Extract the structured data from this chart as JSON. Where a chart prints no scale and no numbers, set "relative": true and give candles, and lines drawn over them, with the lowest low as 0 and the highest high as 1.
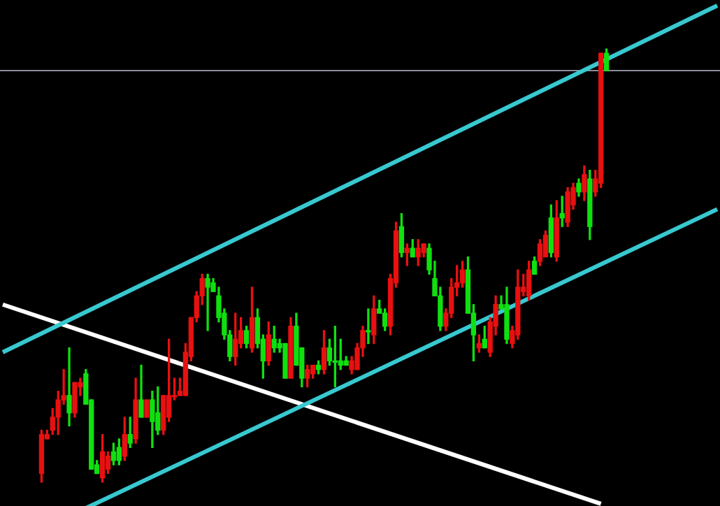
{
  "chart_data": {
    "type": "candlestick",
    "relative": true,
    "legend": false,
    "marker": "none",
    "categories": [
      null,
      null,
      null,
      null,
      null,
      null,
      null,
      null,
      null,
      null,
      null,
      null,
      null,
      null,
      null,
      null,
      null,
      null,
      null,
      null,
      null,
      null,
      null,
      null,
      null,
      null,
      null,
      null,
      null,
      null,
      null,
      null,
      null,
      null,
      null,
      null,
      null,
      null,
      null,
      null,
      null,
      null,
      null,
      null,
      null,
      null,
      null,
      null,
      null,
      null,
      null,
      null,
      null,
      null,
      null,
      null,
      null,
      null,
      null,
      null,
      null,
      null,
      null,
      null,
      null,
      null,
      null,
      null,
      null,
      null,
      null,
      null,
      null,
      null,
      null,
      null,
      null,
      null,
      null,
      null,
      null,
      null,
      null,
      null,
      null,
      null,
      null,
      null,
      null,
      null,
      null,
      null,
      null,
      null,
      null,
      null,
      null,
      null,
      null,
      null,
      null,
      null,
      null,
      null,
      null,
      null,
      null,
      null,
      null,
      null,
      null,
      null,
      null,
      null,
      null,
      null,
      null,
      null,
      null,
      null,
      null,
      null,
      null,
      null,
      null,
      null,
      null,
      null,
      null,
      null
    ],
    "ohlc": [
      null,
      null,
      null,
      null,
      null,
      null,
      null,
      [
        0.02,
        0.12,
        0,
        0.11
      ],
      [
        0.1,
        0.12,
        0.1,
        0.11
      ],
      [
        0.12,
        0.17,
        0.11,
        0.15
      ],
      [
        0.15,
        0.21,
        0.11,
        0.19
      ],
      [
        0.19,
        0.26,
        0.18,
        0.2
      ],
      [
        0.2,
        0.31,
        0.13,
        0.16
      ],
      [
        0.16,
        0.23,
        0.15,
        0.23
      ],
      [
        0.22,
        0.24,
        0.2,
        0.23
      ],
      [
        0.25,
        0.26,
        0.18,
        0.18
      ],
      [
        0.19,
        0.19,
        0.03,
        0.03
      ],
      [
        0.04,
        0.05,
        0.02,
        0.02
      ],
      [
        0.01,
        0.11,
        0,
        0.07
      ],
      [
        0.03,
        0.07,
        0.02,
        0.06
      ],
      [
        0.07,
        0.09,
        0.04,
        0.05
      ],
      [
        0.08,
        0.1,
        0.04,
        0.05
      ],
      [
        0.06,
        0.15,
        0.05,
        0.11
      ],
      [
        0.11,
        0.15,
        0.08,
        0.09
      ],
      [
        0.1,
        0.24,
        0.09,
        0.19
      ],
      [
        0.19,
        0.27,
        0.15,
        0.15
      ],
      [
        0.15,
        0.19,
        0.15,
        0.19
      ],
      [
        0.19,
        0.21,
        0.08,
        0.14
      ],
      [
        0.16,
        0.22,
        0.11,
        0.12
      ],
      [
        0.12,
        0.2,
        0.11,
        0.2
      ],
      [
        0.15,
        0.33,
        0.14,
        0.2
      ],
      [
        0.2,
        0.24,
        0.19,
        0.2
      ],
      [
        0.2,
        0.24,
        0.2,
        0.21
      ],
      [
        0.2,
        0.32,
        0.2,
        0.3
      ],
      [
        0.29,
        0.38,
        0.28,
        0.38
      ],
      [
        0.38,
        0.44,
        0.37,
        0.43
      ],
      [
        0.43,
        0.48,
        0.41,
        0.47
      ],
      [
        0.47,
        0.48,
        0.35,
        0.45
      ],
      [
        0.46,
        0.47,
        0.44,
        0.44
      ],
      [
        0.43,
        0.45,
        0.37,
        0.38
      ],
      [
        0.39,
        0.4,
        0.33,
        0.34
      ],
      [
        0.34,
        0.35,
        0.28,
        0.29
      ],
      [
        0.29,
        0.39,
        0.27,
        0.33
      ],
      [
        0.32,
        0.38,
        0.31,
        0.35
      ],
      [
        0.35,
        0.36,
        0.31,
        0.32
      ],
      [
        0.31,
        0.45,
        0.3,
        0.38
      ],
      [
        0.38,
        0.4,
        0.31,
        0.32
      ],
      [
        0.33,
        0.34,
        0.24,
        0.28
      ],
      [
        0.28,
        0.37,
        0.27,
        0.34
      ],
      [
        0.33,
        0.36,
        0.3,
        0.31
      ],
      [
        0.32,
        0.33,
        0.3,
        0.31
      ],
      [
        0.32,
        0.32,
        0.24,
        0.24
      ],
      [
        0.24,
        0.38,
        0.24,
        0.36
      ],
      [
        0.36,
        0.39,
        0.27,
        0.27
      ],
      [
        0.31,
        0.31,
        0.22,
        0.24
      ],
      [
        0.24,
        0.27,
        0.22,
        0.26
      ],
      [
        0.25,
        0.27,
        0.24,
        0.27
      ],
      [
        0.27,
        0.28,
        0.25,
        0.26
      ],
      [
        0.26,
        0.35,
        0.25,
        0.31
      ],
      [
        0.31,
        0.33,
        0.27,
        0.28
      ],
      [
        0.28,
        0.36,
        0.22,
        0.28
      ],
      [
        0.28,
        0.33,
        0.26,
        0.27
      ],
      [
        0.28,
        0.29,
        0.27,
        0.27
      ],
      [
        0.26,
        0.29,
        0.25,
        0.28
      ],
      [
        0.26,
        0.32,
        0.26,
        0.31
      ],
      [
        0.31,
        0.36,
        0.29,
        0.35
      ],
      [
        0.35,
        0.4,
        0.32,
        0.35
      ],
      [
        0.34,
        0.43,
        0.32,
        0.4
      ],
      [
        0.4,
        0.42,
        0.39,
        0.39
      ],
      [
        0.39,
        0.4,
        0.35,
        0.36
      ],
      [
        0.36,
        0.48,
        0.34,
        0.47
      ],
      [
        0.46,
        0.6,
        0.45,
        0.58
      ],
      [
        0.59,
        0.62,
        0.52,
        0.53
      ],
      [
        0.53,
        0.55,
        0.5,
        0.54
      ],
      [
        0.54,
        0.56,
        0.52,
        0.52
      ],
      [
        0.52,
        0.56,
        0.5,
        0.54
      ],
      [
        0.53,
        0.55,
        0.52,
        0.55
      ],
      [
        0.54,
        0.55,
        0.48,
        0.49
      ],
      [
        0.47,
        0.51,
        0.43,
        0.43
      ],
      [
        0.43,
        0.45,
        0.35,
        0.36
      ],
      [
        0.36,
        0.4,
        0.35,
        0.39
      ],
      [
        0.39,
        0.47,
        0.38,
        0.45
      ],
      [
        0.45,
        0.5,
        0.43,
        0.46
      ],
      [
        0.46,
        0.51,
        0.45,
        0.49
      ],
      [
        0.49,
        0.52,
        0.39,
        0.39
      ],
      [
        0.39,
        0.41,
        0.28,
        0.34
      ],
      [
        0.31,
        0.34,
        0.3,
        0.32
      ],
      [
        0.33,
        0.36,
        0.31,
        0.31
      ],
      [
        0.3,
        0.38,
        0.29,
        0.37
      ],
      [
        0.36,
        0.43,
        0.34,
        0.41
      ],
      [
        0.41,
        0.43,
        0.4,
        0.4
      ],
      [
        0.41,
        0.45,
        0.32,
        0.33
      ],
      [
        0.32,
        0.36,
        0.31,
        0.35
      ],
      [
        0.34,
        0.49,
        0.33,
        0.45
      ],
      [
        0.44,
        0.48,
        0.43,
        0.45
      ],
      [
        0.43,
        0.51,
        0.42,
        0.49
      ],
      [
        0.51,
        0.52,
        0.48,
        0.48
      ],
      [
        0.51,
        0.56,
        0.5,
        0.55
      ],
      [
        0.52,
        0.58,
        0.52,
        0.57
      ],
      [
        0.61,
        0.64,
        0.52,
        0.53
      ],
      [
        0.52,
        0.65,
        0.51,
        0.61
      ],
      [
        0.62,
        0.66,
        0.59,
        0.61
      ],
      [
        0.6,
        0.68,
        0.59,
        0.67
      ],
      [
        0.64,
        0.69,
        0.63,
        0.68
      ],
      [
        0.69,
        0.7,
        0.66,
        0.67
      ],
      [
        0.67,
        0.73,
        0.65,
        0.71
      ],
      [
        0.7,
        0.72,
        0.56,
        0.59
      ],
      [
        0.67,
        0.72,
        0.66,
        0.7
      ],
      [
        0.69,
        0.99,
        0.68,
        0.99
      ],
      [
        0.99,
        1,
        0.95,
        0.95
      ],
      null,
      null,
      null,
      null,
      null,
      null,
      null,
      null,
      null,
      null,
      null,
      null,
      null,
      null,
      null,
      null,
      null,
      null,
      null,
      null
    ],
    "colors": [
      null,
      null,
      null,
      null,
      null,
      null,
      null,
      "#e81010",
      "#e81010",
      "#e81010",
      "#e81010",
      "#e81010",
      "#10e010",
      "#e81010",
      "#e81010",
      "#10e010",
      "#10e010",
      "#10e010",
      "#e81010",
      "#e81010",
      "#10e010",
      "#10e010",
      "#e81010",
      "#10e010",
      "#e81010",
      "#10e010",
      "#e81010",
      "#10e010",
      "#10e010",
      "#e81010",
      "#e81010",
      "#e81010",
      "#e81010",
      "#e81010",
      "#e81010",
      "#e81010",
      "#e81010",
      "#10e010",
      "#10e010",
      "#10e010",
      "#10e010",
      "#10e010",
      "#e81010",
      "#e81010",
      "#10e010",
      "#e81010",
      "#10e010",
      "#10e010",
      "#e81010",
      "#10e010",
      "#10e010",
      "#10e010",
      "#e81010",
      "#10e010",
      "#10e010",
      "#e81010",
      "#e81010",
      "#10e010",
      "#e81010",
      "#10e010",
      "#10e010",
      "#10e010",
      "#10e010",
      "#e81010",
      "#e81010",
      "#e81010",
      "#10e010",
      "#e81010",
      "#10e010",
      "#10e010",
      "#e81010",
      "#e81010",
      "#10e010",
      "#e81010",
      "#10e010",
      "#e81010",
      "#e81010",
      "#10e010",
      "#10e010",
      "#10e010",
      "#e81010",
      "#e81010",
      "#e81010",
      "#e81010",
      "#10e010",
      "#10e010",
      "#e81010",
      "#10e010",
      "#e81010",
      "#e81010",
      "#10e010",
      "#10e010",
      "#e81010",
      "#e81010",
      "#e81010",
      "#e81010",
      "#10e010",
      "#e81010",
      "#e81010",
      "#10e010",
      "#e81010",
      "#10e010",
      "#e81010",
      "#e81010",
      "#10e010",
      "#e81010",
      "#10e010",
      "#e81010",
      "#e81010",
      "#10e010",
      null,
      null,
      null,
      null,
      null,
      null,
      null,
      null,
      null,
      null,
      null,
      null,
      null,
      null,
      null,
      null,
      null,
      null,
      null,
      null
    ],
    "series": [
      {
        "type": "line",
        "color": "#38c8d0",
        "values": [
          0.3,
          null,
          null,
          null,
          null,
          null,
          null,
          null,
          null,
          null,
          null,
          null,
          null,
          null,
          null,
          null,
          null,
          null,
          null,
          null,
          null,
          null,
          null,
          null,
          null,
          null,
          null,
          null,
          null,
          null,
          null,
          null,
          null,
          null,
          null,
          null,
          null,
          null,
          null,
          null,
          null,
          null,
          null,
          null,
          null,
          null,
          null,
          null,
          null,
          null,
          null,
          null,
          null,
          null,
          null,
          null,
          null,
          null,
          null,
          null,
          null,
          null,
          null,
          null,
          null,
          null,
          null,
          null,
          null,
          null,
          null,
          null,
          null,
          null,
          null,
          null,
          null,
          null,
          null,
          null,
          null,
          null,
          null,
          null,
          null,
          null,
          null,
          null,
          null,
          null,
          null,
          null,
          null,
          null,
          null,
          null,
          null,
          null,
          null,
          null,
          null,
          null,
          null,
          null,
          null,
          null,
          null,
          null,
          null,
          null,
          null,
          null,
          null,
          null,
          null,
          null,
          null,
          null,
          null,
          null,
          null,
          null,
          null,
          null,
          null,
          null,
          null,
          null,
          null,
          1.1
        ]
      },
      {
        "type": "line",
        "color": "#38c8d0",
        "values": [
          null,
          null,
          null,
          null,
          null,
          null,
          null,
          null,
          null,
          null,
          null,
          null,
          null,
          null,
          null,
          -0.06,
          null,
          null,
          null,
          null,
          null,
          null,
          null,
          null,
          null,
          null,
          null,
          null,
          null,
          null,
          null,
          null,
          null,
          null,
          null,
          null,
          null,
          null,
          null,
          null,
          null,
          null,
          null,
          null,
          null,
          null,
          null,
          null,
          null,
          null,
          null,
          null,
          null,
          null,
          null,
          null,
          null,
          null,
          null,
          null,
          null,
          null,
          null,
          null,
          null,
          null,
          null,
          null,
          null,
          null,
          null,
          null,
          null,
          null,
          null,
          null,
          null,
          null,
          null,
          null,
          null,
          null,
          null,
          null,
          null,
          null,
          null,
          null,
          null,
          null,
          null,
          null,
          null,
          null,
          null,
          null,
          null,
          null,
          null,
          null,
          null,
          null,
          null,
          null,
          null,
          null,
          null,
          null,
          null,
          null,
          null,
          null,
          null,
          null,
          null,
          null,
          null,
          null,
          null,
          null,
          null,
          null,
          null,
          null,
          null,
          null,
          null,
          null,
          null,
          0.63
        ]
      },
      {
        "type": "line",
        "color": "#ffffff",
        "values": [
          0.41,
          null,
          null,
          null,
          null,
          null,
          null,
          null,
          null,
          null,
          null,
          null,
          null,
          null,
          null,
          null,
          null,
          null,
          null,
          null,
          null,
          null,
          null,
          null,
          null,
          null,
          null,
          null,
          null,
          null,
          null,
          null,
          null,
          null,
          null,
          null,
          null,
          null,
          null,
          null,
          null,
          null,
          null,
          null,
          null,
          null,
          null,
          null,
          null,
          null,
          null,
          null,
          null,
          null,
          null,
          null,
          null,
          null,
          null,
          null,
          null,
          null,
          null,
          null,
          null,
          null,
          null,
          null,
          null,
          null,
          null,
          null,
          null,
          null,
          null,
          null,
          null,
          null,
          null,
          null,
          null,
          null,
          null,
          null,
          null,
          null,
          null,
          null,
          null,
          null,
          null,
          null,
          null,
          null,
          null,
          null,
          null,
          null,
          null,
          null,
          null,
          null,
          null,
          null,
          null,
          null,
          null,
          null,
          -0.05,
          null,
          null,
          null,
          null,
          null,
          null,
          null,
          null,
          null,
          null,
          null,
          null,
          null,
          null,
          null,
          null,
          null,
          null,
          null,
          null,
          null
        ]
      }
    ],
    "ref_lines": [
      {
        "axis": "y",
        "value": 0.95,
        "color": "#8c8c9c"
      }
    ]
  }
}
